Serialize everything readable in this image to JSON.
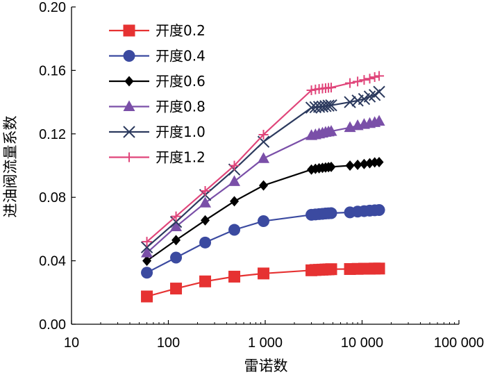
{
  "chart_data": {
    "type": "line",
    "title": "",
    "xlabel": "雷诺数",
    "ylabel": "进油阀流量系数",
    "xscale": "log",
    "xlim": [
      10,
      100000
    ],
    "ylim": [
      0.0,
      0.2
    ],
    "x_tick_values": [
      10,
      100,
      1000,
      10000,
      100000
    ],
    "x_tick_labels": [
      "10",
      "100",
      "1 000",
      "10 000",
      "100 000"
    ],
    "y_tick_values": [
      0.0,
      0.04,
      0.08,
      0.12,
      0.16,
      0.2
    ],
    "y_tick_labels": [
      "0.00",
      "0.04",
      "0.08",
      "0.12",
      "0.16",
      "0.20"
    ],
    "legend_position": "top-left",
    "series": [
      {
        "name": "开度0.2",
        "color": "#e63232",
        "marker": "square",
        "x": [
          60,
          120,
          240,
          480,
          960,
          3000,
          3300,
          3600,
          3900,
          4200,
          4500,
          4800,
          7500,
          9000,
          10500,
          12000,
          13500,
          15000
        ],
        "y": [
          0.0175,
          0.0225,
          0.027,
          0.03,
          0.032,
          0.034,
          0.0342,
          0.0343,
          0.0344,
          0.0345,
          0.0346,
          0.0347,
          0.0348,
          0.0349,
          0.035,
          0.035,
          0.0351,
          0.0351
        ]
      },
      {
        "name": "开度0.4",
        "color": "#3b4aa0",
        "marker": "circle",
        "x": [
          60,
          120,
          240,
          480,
          960,
          3000,
          3300,
          3600,
          3900,
          4200,
          4500,
          4800,
          7500,
          9000,
          10500,
          12000,
          13500,
          15000
        ],
        "y": [
          0.0325,
          0.042,
          0.0515,
          0.0595,
          0.065,
          0.069,
          0.0692,
          0.0694,
          0.0696,
          0.0698,
          0.0699,
          0.07,
          0.0705,
          0.071,
          0.0713,
          0.0716,
          0.0718,
          0.072
        ]
      },
      {
        "name": "开度0.6",
        "color": "#000000",
        "marker": "diamond",
        "x": [
          60,
          120,
          240,
          480,
          960,
          3000,
          3300,
          3600,
          3900,
          4200,
          4500,
          4800,
          7500,
          9000,
          10500,
          12000,
          13500,
          15000
        ],
        "y": [
          0.04,
          0.053,
          0.0655,
          0.0775,
          0.0875,
          0.0975,
          0.098,
          0.0983,
          0.0986,
          0.0988,
          0.099,
          0.0992,
          0.1,
          0.1005,
          0.101,
          0.1015,
          0.102,
          0.1022
        ]
      },
      {
        "name": "开度0.8",
        "color": "#7a4fa8",
        "marker": "triangle",
        "x": [
          60,
          120,
          240,
          480,
          960,
          3000,
          3300,
          3600,
          3900,
          4200,
          4500,
          4800,
          7500,
          9000,
          10500,
          12000,
          13500,
          15000
        ],
        "y": [
          0.045,
          0.0615,
          0.0765,
          0.09,
          0.1045,
          0.119,
          0.1195,
          0.12,
          0.1205,
          0.121,
          0.1213,
          0.1216,
          0.124,
          0.1252,
          0.126,
          0.1266,
          0.1272,
          0.128
        ]
      },
      {
        "name": "开度1.0",
        "color": "#2c3a5e",
        "marker": "x",
        "x": [
          60,
          120,
          240,
          480,
          960,
          3000,
          3300,
          3600,
          3900,
          4200,
          4500,
          4800,
          7500,
          9000,
          10500,
          12000,
          13500,
          15000
        ],
        "y": [
          0.0485,
          0.0645,
          0.0815,
          0.0975,
          0.115,
          0.1365,
          0.1368,
          0.137,
          0.1372,
          0.1375,
          0.1378,
          0.138,
          0.14,
          0.141,
          0.142,
          0.1435,
          0.1445,
          0.1465
        ]
      },
      {
        "name": "开度1.2",
        "color": "#e0457a",
        "marker": "plus",
        "x": [
          60,
          120,
          240,
          480,
          960,
          3000,
          3300,
          3600,
          3900,
          4200,
          4500,
          4800,
          7500,
          9000,
          10500,
          12000,
          13500,
          15000
        ],
        "y": [
          0.052,
          0.068,
          0.084,
          0.1,
          0.1195,
          0.1475,
          0.148,
          0.1483,
          0.1486,
          0.1488,
          0.149,
          0.1492,
          0.152,
          0.153,
          0.154,
          0.1548,
          0.1558,
          0.1565
        ]
      }
    ]
  }
}
